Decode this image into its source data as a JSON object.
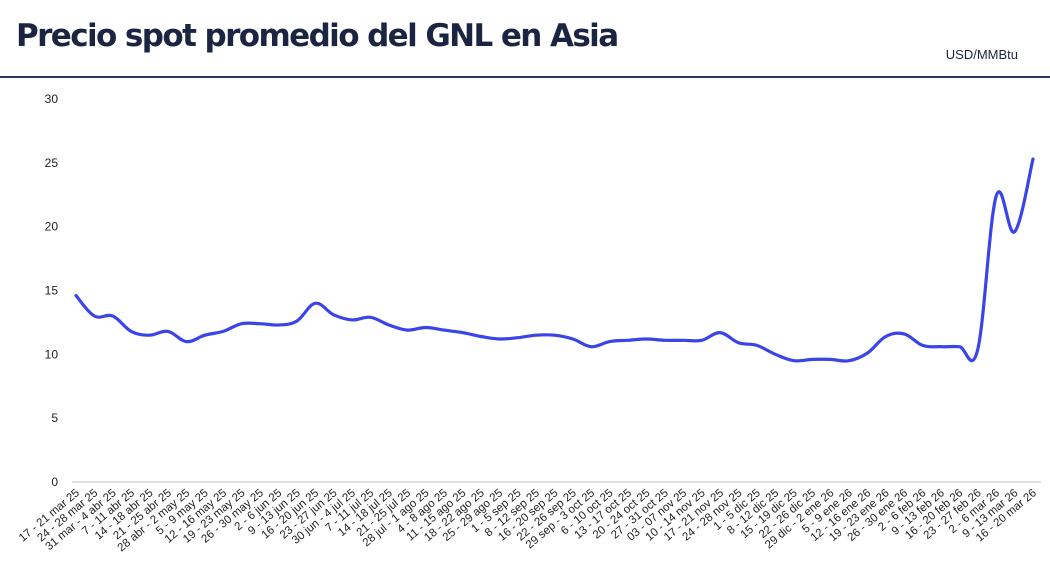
{
  "header": {
    "title": "Precio spot promedio del GNL en Asia",
    "unit": "USD/MMBtu"
  },
  "colors": {
    "title": "#1b2440",
    "rule": "#1f3a5a",
    "line": "#3a44e8",
    "axis": "#bbbbbb"
  },
  "chart_data": {
    "type": "line",
    "title": "",
    "xlabel": "",
    "ylabel": "",
    "ylim": [
      0,
      30
    ],
    "yticks": [
      0,
      5,
      10,
      15,
      20,
      25,
      30
    ],
    "grid": false,
    "categories": [
      "17 - 21 mar 25",
      "24 - 28 mar 25",
      "31 mar - 4 abr 25",
      "7 - 11 abr 25",
      "14 - 18 abr 25",
      "21 - 25 abr 25",
      "28 abr - 2 may 25",
      "5 - 9 may 25",
      "12 - 16 may 25",
      "19 - 23 may 25",
      "26 - 30 may 25",
      "2 - 6 jun 25",
      "9 - 13 jun 25",
      "16 - 20 jun 25",
      "23 - 27 jun 25",
      "30 jun - 4 jul 25",
      "7 - 11 jul 25",
      "14 - 18 jul 25",
      "21 - 25 jul 25",
      "28 jul - 1 ago 25",
      "4 - 8 ago 25",
      "11 - 15 ago 25",
      "18 - 22 ago 25",
      "25 - 29 ago 25",
      "1 - 5 sep 25",
      "8 - 12 sep 25",
      "16 - 20 sep 25",
      "22 - 26 sep 25",
      "29 sep - 3 oct 25",
      "6 - 10 oct 25",
      "13 - 17 oct 25",
      "20 - 24 oct 25",
      "27 - 31 oct 25",
      "03 - 07 nov 25",
      "10 - 14 nov 25",
      "17 - 21 nov 25",
      "24 - 28 nov 25",
      "1 - 5 dic 25",
      "8 - 12 dic 25",
      "15 - 19 dic 25",
      "22 - 26 dic 25",
      "29 dic - 2 ene 26",
      "5 - 9 ene 26",
      "12 - 16 ene 26",
      "19 - 23 ene 26",
      "26 - 30 ene 26",
      "2 - 6 feb 26",
      "9 - 13 feb 26",
      "16 - 20 feb 26",
      "23 - 27 feb 26",
      "2 - 6 mar 26",
      "9 - 13 mar 26",
      "16 - 20 mar 26"
    ],
    "series": [
      {
        "values": [
          14.6,
          13.0,
          13.0,
          11.8,
          11.5,
          11.8,
          11.0,
          11.5,
          11.8,
          12.4,
          12.4,
          12.3,
          12.6,
          14.0,
          13.1,
          12.7,
          12.9,
          12.3,
          11.9,
          12.1,
          11.9,
          11.7,
          11.4,
          11.2,
          11.3,
          11.5,
          11.5,
          11.2,
          10.6,
          11.0,
          11.1,
          11.2,
          11.1,
          11.1,
          11.1,
          11.7,
          10.9,
          10.7,
          10.0,
          9.5,
          9.6,
          9.6,
          9.5,
          10.1,
          11.4,
          11.6,
          10.7,
          10.6,
          10.6,
          10.4,
          22.4,
          19.6,
          25.3
        ]
      }
    ]
  }
}
